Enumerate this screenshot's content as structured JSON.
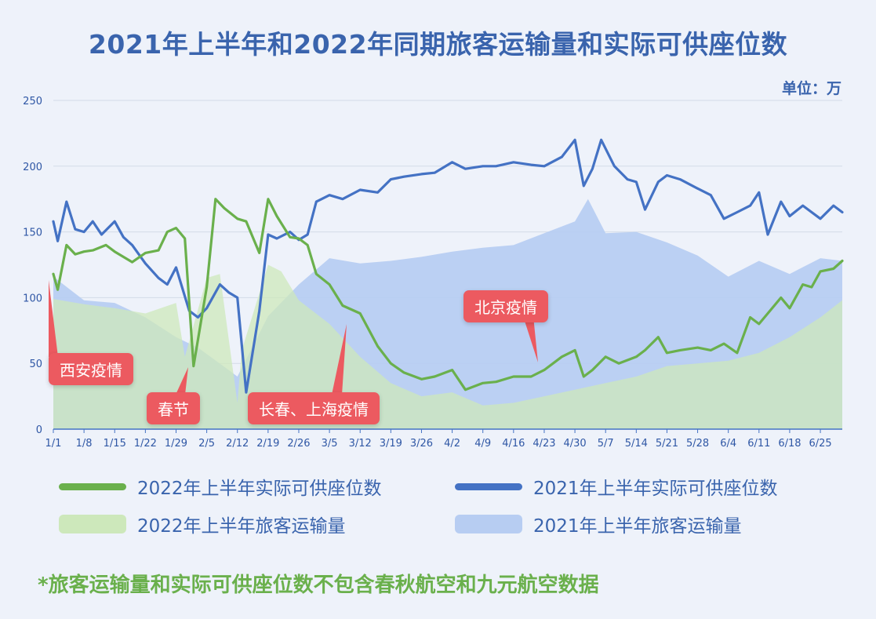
{
  "header": {
    "title": "2021年上半年和2022年同期旅客运输量和实际可供座位数",
    "unit": "单位：万"
  },
  "legend": {
    "items": [
      {
        "label": "2022年上半年实际可供座位数",
        "color": "#6ab04c",
        "kind": "line"
      },
      {
        "label": "2021年上半年实际可供座位数",
        "color": "#4472c4",
        "kind": "line"
      },
      {
        "label": "2022年上半年旅客运输量",
        "color": "#cde8bb",
        "kind": "area"
      },
      {
        "label": "2021年上半年旅客运输量",
        "color": "#b7cdf2",
        "kind": "area"
      }
    ]
  },
  "footnote": "*旅客运输量和实际可供座位数不包含春秋航空和九元航空数据",
  "annotations": {
    "xian": "西安疫情",
    "spring_festival": "春节",
    "changchun_shanghai": "长春、上海疫情",
    "beijing": "北京疫情"
  },
  "chart_data": {
    "type": "line",
    "ylim": [
      0,
      250
    ],
    "yticks": [
      0,
      50,
      100,
      150,
      200,
      250
    ],
    "xlim": [
      "1/1",
      "6/30"
    ],
    "xticks": [
      "1/1",
      "1/8",
      "1/15",
      "1/22",
      "1/29",
      "2/5",
      "2/12",
      "2/19",
      "2/26",
      "3/5",
      "3/12",
      "3/19",
      "3/26",
      "4/2",
      "4/9",
      "4/16",
      "4/23",
      "4/30",
      "5/7",
      "5/14",
      "5/21",
      "5/28",
      "6/4",
      "6/11",
      "6/18",
      "6/25"
    ],
    "grid": true,
    "legend_position": "bottom",
    "series": [
      {
        "name": "2021年上半年旅客运输量",
        "kind": "area",
        "color": "#b7cdf2",
        "x": [
          "1/1",
          "1/8",
          "1/15",
          "1/22",
          "1/29",
          "2/3",
          "2/10",
          "2/12",
          "2/19",
          "2/26",
          "3/5",
          "3/12",
          "3/19",
          "3/26",
          "4/2",
          "4/9",
          "4/16",
          "4/23",
          "4/30",
          "5/3",
          "5/7",
          "5/14",
          "5/21",
          "5/28",
          "6/4",
          "6/11",
          "6/18",
          "6/25",
          "6/30"
        ],
        "values": [
          116,
          98,
          96,
          85,
          70,
          62,
          45,
          40,
          86,
          110,
          130,
          126,
          128,
          131,
          135,
          138,
          140,
          149,
          158,
          175,
          149,
          150,
          142,
          132,
          116,
          128,
          118,
          130,
          128
        ]
      },
      {
        "name": "2022年上半年旅客运输量",
        "kind": "area",
        "color": "#cde8bb",
        "x": [
          "1/1",
          "1/8",
          "1/15",
          "1/22",
          "1/29",
          "1/31",
          "2/5",
          "2/8",
          "2/12",
          "2/13",
          "2/19",
          "2/22",
          "2/26",
          "3/5",
          "3/12",
          "3/19",
          "3/26",
          "4/2",
          "4/9",
          "4/16",
          "4/23",
          "4/30",
          "5/7",
          "5/14",
          "5/21",
          "5/28",
          "6/4",
          "6/11",
          "6/18",
          "6/25",
          "6/30"
        ],
        "values": [
          99,
          95,
          92,
          88,
          96,
          55,
          115,
          118,
          20,
          60,
          125,
          120,
          98,
          80,
          55,
          35,
          25,
          28,
          18,
          20,
          25,
          30,
          35,
          40,
          48,
          50,
          52,
          58,
          70,
          85,
          98
        ]
      },
      {
        "name": "2021年上半年实际可供座位数",
        "kind": "line",
        "color": "#4472c4",
        "x": [
          "1/1",
          "1/2",
          "1/4",
          "1/6",
          "1/8",
          "1/10",
          "1/12",
          "1/15",
          "1/17",
          "1/19",
          "1/22",
          "1/25",
          "1/27",
          "1/29",
          "2/1",
          "2/3",
          "2/5",
          "2/8",
          "2/10",
          "2/12",
          "2/14",
          "2/17",
          "2/19",
          "2/21",
          "2/24",
          "2/26",
          "2/28",
          "3/2",
          "3/5",
          "3/8",
          "3/12",
          "3/16",
          "3/19",
          "3/22",
          "3/26",
          "3/29",
          "4/2",
          "4/5",
          "4/9",
          "4/12",
          "4/16",
          "4/20",
          "4/23",
          "4/27",
          "4/30",
          "5/2",
          "5/4",
          "5/6",
          "5/9",
          "5/12",
          "5/14",
          "5/16",
          "5/19",
          "5/21",
          "5/24",
          "5/28",
          "5/31",
          "6/3",
          "6/6",
          "6/9",
          "6/11",
          "6/13",
          "6/16",
          "6/18",
          "6/21",
          "6/25",
          "6/28",
          "6/30"
        ],
        "values": [
          158,
          143,
          173,
          152,
          150,
          158,
          148,
          158,
          146,
          140,
          126,
          115,
          110,
          123,
          90,
          85,
          92,
          110,
          104,
          100,
          28,
          90,
          148,
          145,
          150,
          144,
          148,
          173,
          178,
          175,
          182,
          180,
          190,
          192,
          194,
          195,
          203,
          198,
          200,
          200,
          203,
          201,
          200,
          207,
          220,
          185,
          198,
          220,
          200,
          190,
          188,
          167,
          188,
          193,
          190,
          183,
          178,
          160,
          165,
          170,
          180,
          148,
          173,
          162,
          170,
          160,
          170,
          165
        ]
      },
      {
        "name": "2022年上半年实际可供座位数",
        "kind": "line",
        "color": "#6ab04c",
        "x": [
          "1/1",
          "1/2",
          "1/4",
          "1/6",
          "1/8",
          "1/10",
          "1/13",
          "1/15",
          "1/19",
          "1/22",
          "1/25",
          "1/27",
          "1/29",
          "1/31",
          "2/2",
          "2/5",
          "2/7",
          "2/9",
          "2/12",
          "2/14",
          "2/17",
          "2/19",
          "2/21",
          "2/24",
          "2/26",
          "2/28",
          "3/2",
          "3/5",
          "3/8",
          "3/12",
          "3/16",
          "3/19",
          "3/22",
          "3/26",
          "3/29",
          "4/2",
          "4/5",
          "4/9",
          "4/12",
          "4/16",
          "4/20",
          "4/23",
          "4/27",
          "4/30",
          "5/2",
          "5/4",
          "5/7",
          "5/10",
          "5/14",
          "5/16",
          "5/19",
          "5/21",
          "5/24",
          "5/28",
          "5/31",
          "6/3",
          "6/6",
          "6/9",
          "6/11",
          "6/13",
          "6/16",
          "6/18",
          "6/21",
          "6/23",
          "6/25",
          "6/28",
          "6/30"
        ],
        "values": [
          118,
          106,
          140,
          133,
          135,
          136,
          140,
          135,
          127,
          134,
          136,
          150,
          153,
          145,
          48,
          108,
          175,
          168,
          160,
          158,
          134,
          175,
          162,
          146,
          145,
          140,
          118,
          110,
          94,
          88,
          63,
          50,
          43,
          38,
          40,
          45,
          30,
          35,
          36,
          40,
          40,
          45,
          55,
          60,
          40,
          45,
          55,
          50,
          55,
          60,
          70,
          58,
          60,
          62,
          60,
          65,
          58,
          85,
          80,
          88,
          100,
          92,
          110,
          108,
          120,
          122,
          128
        ]
      }
    ]
  }
}
